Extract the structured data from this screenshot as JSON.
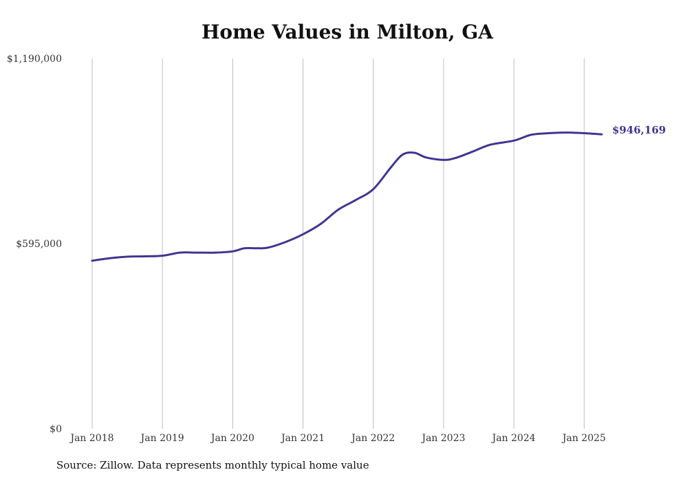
{
  "chart_data": {
    "type": "line",
    "title": "Home Values in Milton, GA",
    "xlabel": "",
    "ylabel": "",
    "ylim": [
      0,
      1190000
    ],
    "y_ticks": [
      {
        "value": 0,
        "label": "$0"
      },
      {
        "value": 595000,
        "label": "$595,000"
      },
      {
        "value": 1190000,
        "label": "$1,190,000"
      }
    ],
    "x_ticks": [
      {
        "value": "2018-01",
        "label": "Jan 2018"
      },
      {
        "value": "2019-01",
        "label": "Jan 2019"
      },
      {
        "value": "2020-01",
        "label": "Jan 2020"
      },
      {
        "value": "2021-01",
        "label": "Jan 2021"
      },
      {
        "value": "2022-01",
        "label": "Jan 2022"
      },
      {
        "value": "2023-01",
        "label": "Jan 2023"
      },
      {
        "value": "2024-01",
        "label": "Jan 2024"
      },
      {
        "value": "2025-01",
        "label": "Jan 2025"
      }
    ],
    "grid": "vertical",
    "series": [
      {
        "color": "#3f3591",
        "end_label": "$946,169",
        "points": [
          {
            "x": "2018-01",
            "y": 540000
          },
          {
            "x": "2018-04",
            "y": 548000
          },
          {
            "x": "2018-07",
            "y": 553000
          },
          {
            "x": "2018-10",
            "y": 554000
          },
          {
            "x": "2019-01",
            "y": 556000
          },
          {
            "x": "2019-04",
            "y": 566000
          },
          {
            "x": "2019-07",
            "y": 566000
          },
          {
            "x": "2019-10",
            "y": 566000
          },
          {
            "x": "2020-01",
            "y": 570000
          },
          {
            "x": "2020-03",
            "y": 580000
          },
          {
            "x": "2020-05",
            "y": 580000
          },
          {
            "x": "2020-07",
            "y": 582000
          },
          {
            "x": "2020-10",
            "y": 600000
          },
          {
            "x": "2021-01",
            "y": 625000
          },
          {
            "x": "2021-04",
            "y": 658000
          },
          {
            "x": "2021-07",
            "y": 704000
          },
          {
            "x": "2021-10",
            "y": 735000
          },
          {
            "x": "2022-01",
            "y": 770000
          },
          {
            "x": "2022-04",
            "y": 840000
          },
          {
            "x": "2022-06",
            "y": 881000
          },
          {
            "x": "2022-08",
            "y": 887000
          },
          {
            "x": "2022-10",
            "y": 872000
          },
          {
            "x": "2023-01",
            "y": 864000
          },
          {
            "x": "2023-03",
            "y": 870000
          },
          {
            "x": "2023-06",
            "y": 891000
          },
          {
            "x": "2023-09",
            "y": 913000
          },
          {
            "x": "2024-01",
            "y": 926000
          },
          {
            "x": "2024-04",
            "y": 945000
          },
          {
            "x": "2024-07",
            "y": 950000
          },
          {
            "x": "2024-10",
            "y": 952000
          },
          {
            "x": "2025-01",
            "y": 950000
          },
          {
            "x": "2025-04",
            "y": 946169
          }
        ]
      }
    ]
  },
  "footer": {
    "source": "Source: Zillow. Data represents monthly typical home value"
  }
}
